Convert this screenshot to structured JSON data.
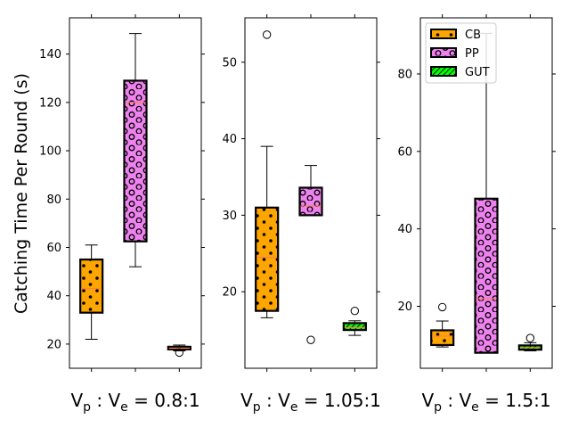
{
  "chart_data": {
    "type": "box",
    "ylabel": "Catching Time Per Round (s)",
    "legend": {
      "position": "upper-left of third panel",
      "entries": [
        {
          "label": "CB",
          "color": "#ffa500",
          "hatch": "dots"
        },
        {
          "label": "PP",
          "color": "#ee82ee",
          "hatch": "circles"
        },
        {
          "label": "GUT",
          "color": "#00ff00",
          "hatch": "diagonal"
        }
      ]
    },
    "median_color": "#ff7f50",
    "panels": [
      {
        "xlabel_main": "V",
        "xlabel_sub1": "p",
        "xlabel_mid": " : V",
        "xlabel_sub2": "e",
        "xlabel_ratio": " = 0.8:1",
        "ylim": [
          10,
          155
        ],
        "yticks": [
          20,
          40,
          60,
          80,
          100,
          120,
          140
        ],
        "tick_side": "left",
        "boxes": [
          {
            "name": "CB",
            "whislo": 22,
            "q1": 33,
            "med": 43,
            "q3": 55,
            "whishi": 61,
            "fliers": []
          },
          {
            "name": "PP",
            "whislo": 52,
            "q1": 62.5,
            "med": 120,
            "q3": 129,
            "whishi": 148.5,
            "fliers": []
          },
          {
            "name": "GUT",
            "whislo": 17.2,
            "q1": 17.8,
            "med": 18.3,
            "q3": 18.9,
            "whishi": 19.6,
            "fliers": [
              16.5
            ]
          }
        ]
      },
      {
        "xlabel_main": "V",
        "xlabel_sub1": "p",
        "xlabel_mid": " : V",
        "xlabel_sub2": "e",
        "xlabel_ratio": " = 1.05:1",
        "ylim": [
          10,
          55.8
        ],
        "yticks": [
          20,
          30,
          40,
          50
        ],
        "tick_side": "left",
        "boxes": [
          {
            "name": "CB",
            "whislo": 16.6,
            "q1": 17.5,
            "med": 24.5,
            "q3": 31,
            "whishi": 39,
            "fliers": [
              53.6
            ]
          },
          {
            "name": "PP",
            "whislo": 30,
            "q1": 30,
            "med": 31.2,
            "q3": 33.6,
            "whishi": 36.5,
            "fliers": [
              13.7
            ]
          },
          {
            "name": "GUT",
            "whislo": 14.3,
            "q1": 15,
            "med": 15.3,
            "q3": 15.9,
            "whishi": 16.2,
            "fliers": [
              17.5
            ]
          }
        ]
      },
      {
        "xlabel_main": "V",
        "xlabel_sub1": "p",
        "xlabel_mid": " : V",
        "xlabel_sub2": "e",
        "xlabel_ratio": " = 1.5:1",
        "ylim": [
          4,
          94.5
        ],
        "yticks": [
          20,
          40,
          60,
          80
        ],
        "tick_side": "left",
        "boxes": [
          {
            "name": "CB",
            "whislo": 9.5,
            "q1": 10,
            "med": 12.3,
            "q3": 13.8,
            "whishi": 16.2,
            "fliers": [
              19.8
            ]
          },
          {
            "name": "PP",
            "whislo": 8,
            "q1": 8,
            "med": 22,
            "q3": 47.8,
            "whishi": 90.5,
            "fliers": []
          },
          {
            "name": "GUT",
            "whislo": 8.5,
            "q1": 8.8,
            "med": 9.3,
            "q3": 9.9,
            "whishi": 10.6,
            "fliers": [
              11.8
            ]
          }
        ]
      }
    ]
  }
}
